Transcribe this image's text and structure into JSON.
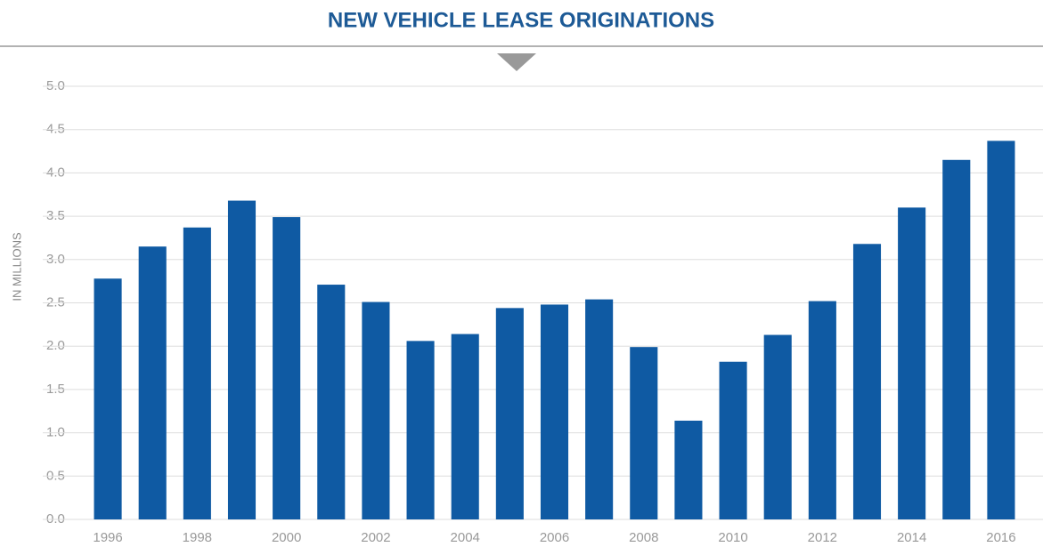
{
  "chart_data": {
    "type": "bar",
    "title": "NEW VEHICLE LEASE ORIGINATIONS",
    "y_label": "IN MILLIONS",
    "categories": [
      "1996",
      null,
      "1998",
      null,
      "2000",
      null,
      "2002",
      null,
      "2004",
      null,
      "2006",
      null,
      "2008",
      null,
      "2010",
      null,
      "2012",
      null,
      "2014",
      null,
      "2016"
    ],
    "values": [
      2.78,
      3.15,
      3.37,
      3.68,
      3.49,
      2.71,
      2.51,
      2.06,
      2.14,
      2.44,
      2.48,
      2.54,
      1.99,
      1.14,
      1.82,
      2.13,
      2.52,
      3.18,
      3.6,
      4.15,
      4.37
    ],
    "color": "#0f5aa3",
    "ylim": [
      0,
      5
    ],
    "yticks": [
      {
        "value": 0,
        "label": "0.0"
      },
      0.5,
      {
        "value": 1,
        "label": "1.0"
      },
      1.5,
      {
        "value": 2,
        "label": "2.0"
      },
      2.5,
      {
        "value": 3,
        "label": "3.0"
      },
      3.5,
      {
        "value": 4,
        "label": "4.0"
      },
      4.5,
      {
        "value": 5,
        "label": "5.0"
      }
    ],
    "grid": true
  }
}
